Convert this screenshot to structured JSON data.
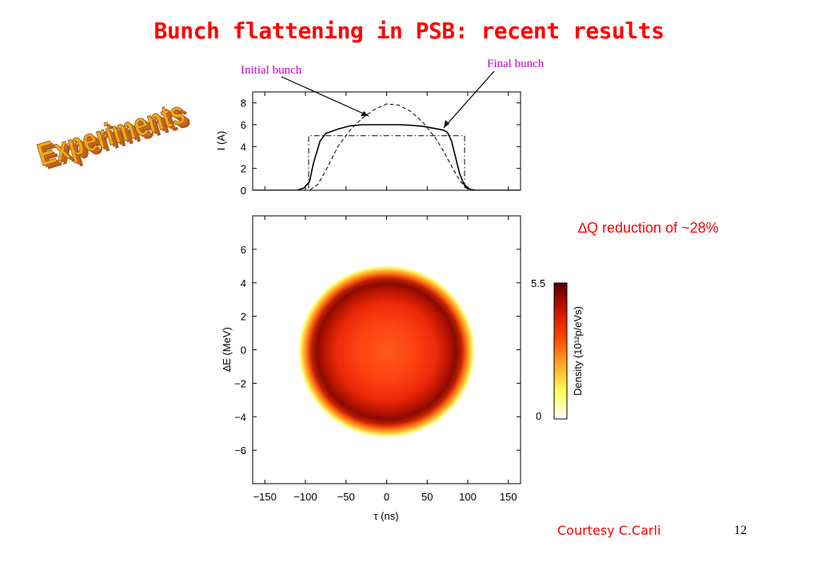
{
  "slide": {
    "title": "Bunch flattening in PSB: recent results",
    "badge": "Experiments",
    "label_initial": "Initial bunch",
    "label_final": "Final bunch",
    "dq_delta": "∆",
    "dq_text": "Q reduction of ~28%",
    "courtesy": "Courtesy C.Carli",
    "page_number": "12"
  },
  "colors": {
    "title": "#ff0000",
    "annotation": "#cc00cc",
    "badge_face": "#f0a818",
    "badge_shadow": "#b0581a"
  },
  "chart_data": [
    {
      "type": "line",
      "ylabel": "I (A)",
      "xlim": [
        -165,
        165
      ],
      "ylim": [
        0,
        9
      ],
      "yticks": [
        0,
        2,
        4,
        6,
        8
      ],
      "grid": false,
      "series": [
        {
          "name": "Final bunch",
          "style": "solid",
          "x": [
            -165,
            -110,
            -102,
            -95,
            -90,
            -82,
            -75,
            -60,
            -45,
            -30,
            -15,
            0,
            15,
            30,
            45,
            60,
            70,
            75,
            80,
            85,
            90,
            95,
            100,
            105,
            110,
            120,
            165
          ],
          "y": [
            0,
            0,
            0.2,
            0.8,
            2.5,
            4.5,
            5.2,
            5.6,
            5.9,
            6.0,
            6.0,
            6.0,
            6.0,
            5.95,
            5.85,
            5.65,
            5.5,
            5.3,
            4.5,
            3.0,
            1.5,
            0.6,
            0.2,
            0.05,
            0,
            0,
            0
          ]
        },
        {
          "name": "Initial bunch",
          "style": "dashed",
          "x": [
            -165,
            -95,
            -85,
            -75,
            -60,
            -45,
            -30,
            -15,
            0,
            15,
            30,
            45,
            60,
            70,
            80,
            90,
            98,
            105,
            165
          ],
          "y": [
            0,
            0,
            0.5,
            1.8,
            4.0,
            5.5,
            6.6,
            7.4,
            7.9,
            7.8,
            7.2,
            6.2,
            4.8,
            3.6,
            2.2,
            0.9,
            0.2,
            0,
            0
          ]
        },
        {
          "name": "",
          "style": "dashdot",
          "x": [
            -165,
            -96,
            -96,
            96,
            96,
            165
          ],
          "y": [
            0,
            0,
            5,
            5,
            0,
            0
          ]
        }
      ]
    },
    {
      "type": "heatmap",
      "xlabel": "τ (ns)",
      "ylabel": "∆E (MeV)",
      "xlim": [
        -165,
        165
      ],
      "ylim": [
        -8,
        8
      ],
      "xticks": [
        -150,
        -100,
        -50,
        0,
        50,
        100,
        150
      ],
      "xtick_labels": [
        "−150",
        "−100",
        "−50",
        "0",
        "50",
        "100",
        "150"
      ],
      "yticks": [
        -6,
        -4,
        -2,
        0,
        2,
        4,
        6
      ],
      "ytick_labels": [
        "−6",
        "−4",
        "−2",
        "0",
        "2",
        "4",
        "6"
      ],
      "colorbar": {
        "label": "Density (10¹²p/eVs)",
        "min": 0,
        "max": 5.5,
        "min_label": "0",
        "max_label": "5.5",
        "stops": [
          "#ffffff",
          "#ffff55",
          "#ffaa22",
          "#ff4400",
          "#cc1100",
          "#550000"
        ]
      },
      "distribution": {
        "center_tau": 0,
        "center_dE": -0.1,
        "half_width_tau": 110,
        "half_width_dE": 5.2,
        "peak_ring_radius": 0.78,
        "core_level": 0.55,
        "ring_level": 1.0
      }
    }
  ]
}
